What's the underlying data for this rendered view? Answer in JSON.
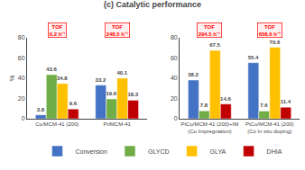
{
  "chart_data": [
    {
      "type": "bar",
      "title": "(c) Catalytic performance",
      "y_label": "%",
      "categories": [
        "Co/MCM-41 (200)",
        "Pt/MCM-41"
      ],
      "series": [
        {
          "name": "Conversion",
          "color": "#4472c4",
          "values": [
            3.8,
            33.2
          ]
        },
        {
          "name": "GLYCD",
          "color": "#70ad47",
          "values": [
            43.6,
            19.6
          ]
        },
        {
          "name": "GLYA",
          "color": "#ffc000",
          "values": [
            34.8,
            40.1
          ]
        },
        {
          "name": "DHIA",
          "color": "#c00000",
          "values": [
            9.6,
            18.3
          ]
        }
      ],
      "ylim": [
        0,
        80
      ],
      "yticks": [
        0,
        20,
        40,
        60,
        80
      ],
      "grid": false,
      "data_labels": true,
      "legend": "bottom",
      "annotations": [
        {
          "category": "Co/MCM-41 (200)",
          "text": "TOF\n0.2 h⁻¹",
          "color": "red"
        },
        {
          "category": "Pt/MCM-41",
          "text": "TOF\n248.5 h⁻¹",
          "color": "red"
        }
      ]
    },
    {
      "type": "bar",
      "categories": [
        "PtCo/MCM-41 (200)+IM\n(Co Impregnation)",
        "PtCo/MCM-41 (200)\n(Co In situ doping)"
      ],
      "series": [
        {
          "name": "Conversion",
          "color": "#4472c4",
          "values": [
            38.2,
            55.4
          ]
        },
        {
          "name": "GLYCD",
          "color": "#70ad47",
          "values": [
            7.8,
            7.6
          ]
        },
        {
          "name": "GLYA",
          "color": "#ffc000",
          "values": [
            67.5,
            70.6
          ]
        },
        {
          "name": "DHIA",
          "color": "#c00000",
          "values": [
            14.6,
            11.4
          ]
        }
      ],
      "ylim": [
        0,
        80
      ],
      "yticks": [
        0,
        20,
        40,
        60,
        80
      ],
      "grid": false,
      "data_labels": true,
      "annotations": [
        {
          "category": "PtCo/MCM-41 (200)+IM\n(Co Impregnation)",
          "text": "TOF\n294.5 h⁻¹",
          "color": "red"
        },
        {
          "category": "PtCo/MCM-41 (200)\n(Co In situ doping)",
          "text": "TOF\n658.6 h⁻¹",
          "color": "red"
        }
      ]
    }
  ]
}
